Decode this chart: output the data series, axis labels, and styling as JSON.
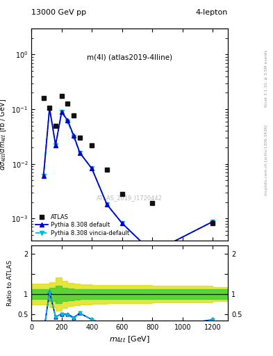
{
  "title_top_left": "13000 GeV pp",
  "title_top_right": "4-lepton",
  "plot_label": "m(4l) (atlas2019-4lline)",
  "watermark": "ATLAS_2019_I1720442",
  "right_label_top": "Rivet 3.1.10, ≥ 3.5M events",
  "right_label_bottom": "mcplots.cern.ch [arXiv:1306.3436]",
  "atlas_x": [
    80,
    120,
    160,
    200,
    240,
    280,
    320,
    400,
    500,
    600,
    800,
    1200
  ],
  "atlas_y": [
    0.16,
    0.105,
    0.05,
    0.175,
    0.125,
    0.078,
    0.03,
    0.022,
    0.0078,
    0.0028,
    0.0019,
    0.00082
  ],
  "pythia_x": [
    80,
    120,
    160,
    200,
    240,
    280,
    320,
    400,
    500,
    600,
    800,
    1200
  ],
  "pythia_y": [
    0.006,
    0.105,
    0.022,
    0.09,
    0.062,
    0.033,
    0.016,
    0.0082,
    0.0018,
    0.00082,
    0.00024,
    0.00088
  ],
  "vincia_x": [
    80,
    120,
    160,
    200,
    240,
    280,
    320,
    400,
    500,
    600,
    800,
    1200
  ],
  "vincia_y": [
    0.006,
    0.104,
    0.022,
    0.088,
    0.06,
    0.031,
    0.016,
    0.0082,
    0.0018,
    0.00082,
    0.00024,
    0.00088
  ],
  "ratio_pythia_x": [
    80,
    120,
    160,
    200,
    240,
    280,
    320,
    400,
    500,
    600,
    800,
    1200
  ],
  "ratio_pythia_y": [
    0.037,
    1.05,
    0.44,
    0.51,
    0.5,
    0.42,
    0.53,
    0.37,
    0.23,
    0.29,
    0.13,
    0.37
  ],
  "ratio_vincia_x": [
    80,
    120,
    160,
    200,
    240,
    280,
    320,
    400,
    500,
    600,
    800,
    1200
  ],
  "ratio_vincia_y": [
    0.037,
    1.04,
    0.44,
    0.5,
    0.48,
    0.4,
    0.53,
    0.37,
    0.23,
    0.29,
    0.13,
    0.37
  ],
  "band_x_lo": [
    0,
    80,
    120,
    160,
    200,
    240,
    280,
    320,
    400,
    500,
    600,
    800,
    1200
  ],
  "band_x_hi": [
    80,
    120,
    160,
    200,
    240,
    280,
    320,
    400,
    500,
    600,
    800,
    1200,
    1300
  ],
  "band_green_lo": [
    0.88,
    0.88,
    0.83,
    0.78,
    0.83,
    0.85,
    0.87,
    0.88,
    0.88,
    0.88,
    0.88,
    0.88,
    0.88
  ],
  "band_green_hi": [
    1.12,
    1.12,
    1.15,
    1.2,
    1.15,
    1.13,
    1.12,
    1.12,
    1.12,
    1.12,
    1.12,
    1.12,
    1.12
  ],
  "band_yellow_lo": [
    0.75,
    0.75,
    0.68,
    0.58,
    0.65,
    0.7,
    0.73,
    0.75,
    0.76,
    0.77,
    0.78,
    0.8,
    0.82
  ],
  "band_yellow_hi": [
    1.25,
    1.25,
    1.3,
    1.42,
    1.33,
    1.28,
    1.25,
    1.24,
    1.23,
    1.22,
    1.22,
    1.2,
    1.18
  ],
  "main_ylim_lo": 0.0004,
  "main_ylim_hi": 3.0,
  "ratio_ylim_lo": 0.35,
  "ratio_ylim_hi": 2.2,
  "xlim_lo": 0,
  "xlim_hi": 1300,
  "color_atlas": "#111111",
  "color_pythia": "#0000cc",
  "color_vincia": "#00bbdd",
  "color_green": "#33cc33",
  "color_yellow": "#dddd00",
  "color_watermark": "#bbbbbb",
  "color_right_label": "#999999"
}
